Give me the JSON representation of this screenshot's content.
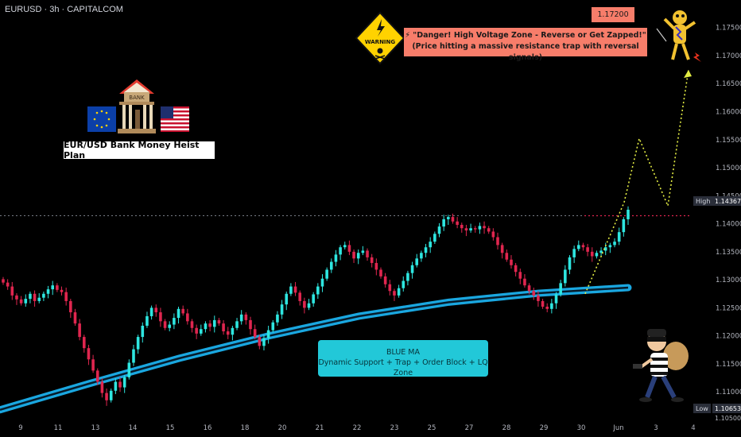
{
  "header": {
    "symbol_line": "EURUSD · 3h · CAPITALCOM"
  },
  "colors": {
    "up": "#2ee6e0",
    "down": "#e0264f",
    "ma": "#1aa7e0",
    "grid": "#0e0e0e",
    "background": "#000000",
    "annotation": "#f77d6a"
  },
  "annotations": {
    "bank_title": "EUR/USD Bank Money Heist Plan",
    "bank_sign": "BANK",
    "warning_sign": "WARNING",
    "danger_line1": "⚡ \"Danger! High Voltage Zone - Reverse or Get Zapped!\"",
    "danger_line2": "(Price hitting a massive resistance trap with reversal signals)",
    "target_price": "1.17200",
    "ma_title": "BLUE MA",
    "ma_desc": "Dynamic Support + Trap + Order Block + LQ Zone"
  },
  "price_labels": {
    "high_tag": "High",
    "high_value": "1.14367",
    "low_tag": "Low",
    "low_value": "1.10653",
    "bottom_value": "1.10500"
  },
  "icons": [
    "eu-flag-icon",
    "bank-icon",
    "us-flag-icon",
    "warning-sign-icon",
    "electric-man-icon",
    "thief-icon"
  ],
  "chart_data": {
    "type": "candlestick",
    "title": "",
    "y_ticks": [
      "1.17500",
      "1.17000",
      "1.16500",
      "1.16000",
      "1.15500",
      "1.15000",
      "1.14500",
      "1.14000",
      "1.13500",
      "1.13000",
      "1.12500",
      "1.12000",
      "1.11500",
      "1.11000"
    ],
    "ylim": [
      1.1045,
      1.1785
    ],
    "x_ticks": [
      "9",
      "11",
      "13",
      "14",
      "15",
      "16",
      "18",
      "20",
      "21",
      "22",
      "23",
      "25",
      "27",
      "28",
      "29",
      "30",
      "Jun",
      "3",
      "4"
    ],
    "grid": false,
    "series": [
      {
        "kind": "candles",
        "close": [
          1.1295,
          1.1288,
          1.1272,
          1.1265,
          1.1258,
          1.1266,
          1.1275,
          1.1262,
          1.1268,
          1.1275,
          1.1283,
          1.129,
          1.1282,
          1.1278,
          1.1262,
          1.1242,
          1.1222,
          1.1198,
          1.1178,
          1.1158,
          1.1138,
          1.1118,
          1.1098,
          1.1085,
          1.1102,
          1.1118,
          1.1108,
          1.1126,
          1.1152,
          1.1176,
          1.1198,
          1.1218,
          1.1235,
          1.125,
          1.1242,
          1.1226,
          1.1214,
          1.122,
          1.1232,
          1.1248,
          1.124,
          1.1226,
          1.1214,
          1.1204,
          1.1212,
          1.1222,
          1.1216,
          1.1228,
          1.1222,
          1.1208,
          1.1202,
          1.1214,
          1.1226,
          1.1238,
          1.1228,
          1.1212,
          1.1198,
          1.1182,
          1.1196,
          1.121,
          1.1224,
          1.1238,
          1.1256,
          1.1275,
          1.1288,
          1.1277,
          1.1262,
          1.125,
          1.1258,
          1.1274,
          1.1288,
          1.1302,
          1.1318,
          1.1332,
          1.1345,
          1.1358,
          1.1362,
          1.135,
          1.1338,
          1.1348,
          1.1352,
          1.134,
          1.133,
          1.1318,
          1.1306,
          1.1292,
          1.128,
          1.1272,
          1.1285,
          1.1298,
          1.1312,
          1.1326,
          1.1338,
          1.1348,
          1.1358,
          1.1368,
          1.1382,
          1.1395,
          1.1408,
          1.1412,
          1.1404,
          1.1398,
          1.1392,
          1.1388,
          1.1392,
          1.139,
          1.1396,
          1.1392,
          1.1386,
          1.1376,
          1.1362,
          1.1348,
          1.1336,
          1.1326,
          1.1314,
          1.1302,
          1.129,
          1.128,
          1.1272,
          1.1262,
          1.1252,
          1.1248,
          1.1258,
          1.1274,
          1.1294,
          1.1318,
          1.134,
          1.1355,
          1.1362,
          1.1358,
          1.135,
          1.1342,
          1.1348,
          1.1352,
          1.1358,
          1.1362,
          1.1368,
          1.1385,
          1.1408,
          1.1425
        ]
      },
      {
        "kind": "moving_average",
        "name": "",
        "values": [
          1.1068,
          1.1115,
          1.116,
          1.12,
          1.1235,
          1.126,
          1.1276,
          1.1286
        ]
      },
      {
        "kind": "projection",
        "values": [
          1.1275,
          1.1438,
          1.1552,
          1.1432,
          1.1675
        ]
      }
    ],
    "x_tick_label_positions_note": "",
    "reference_lines": [
      {
        "value": 1.14143,
        "style": "dotted"
      }
    ]
  }
}
